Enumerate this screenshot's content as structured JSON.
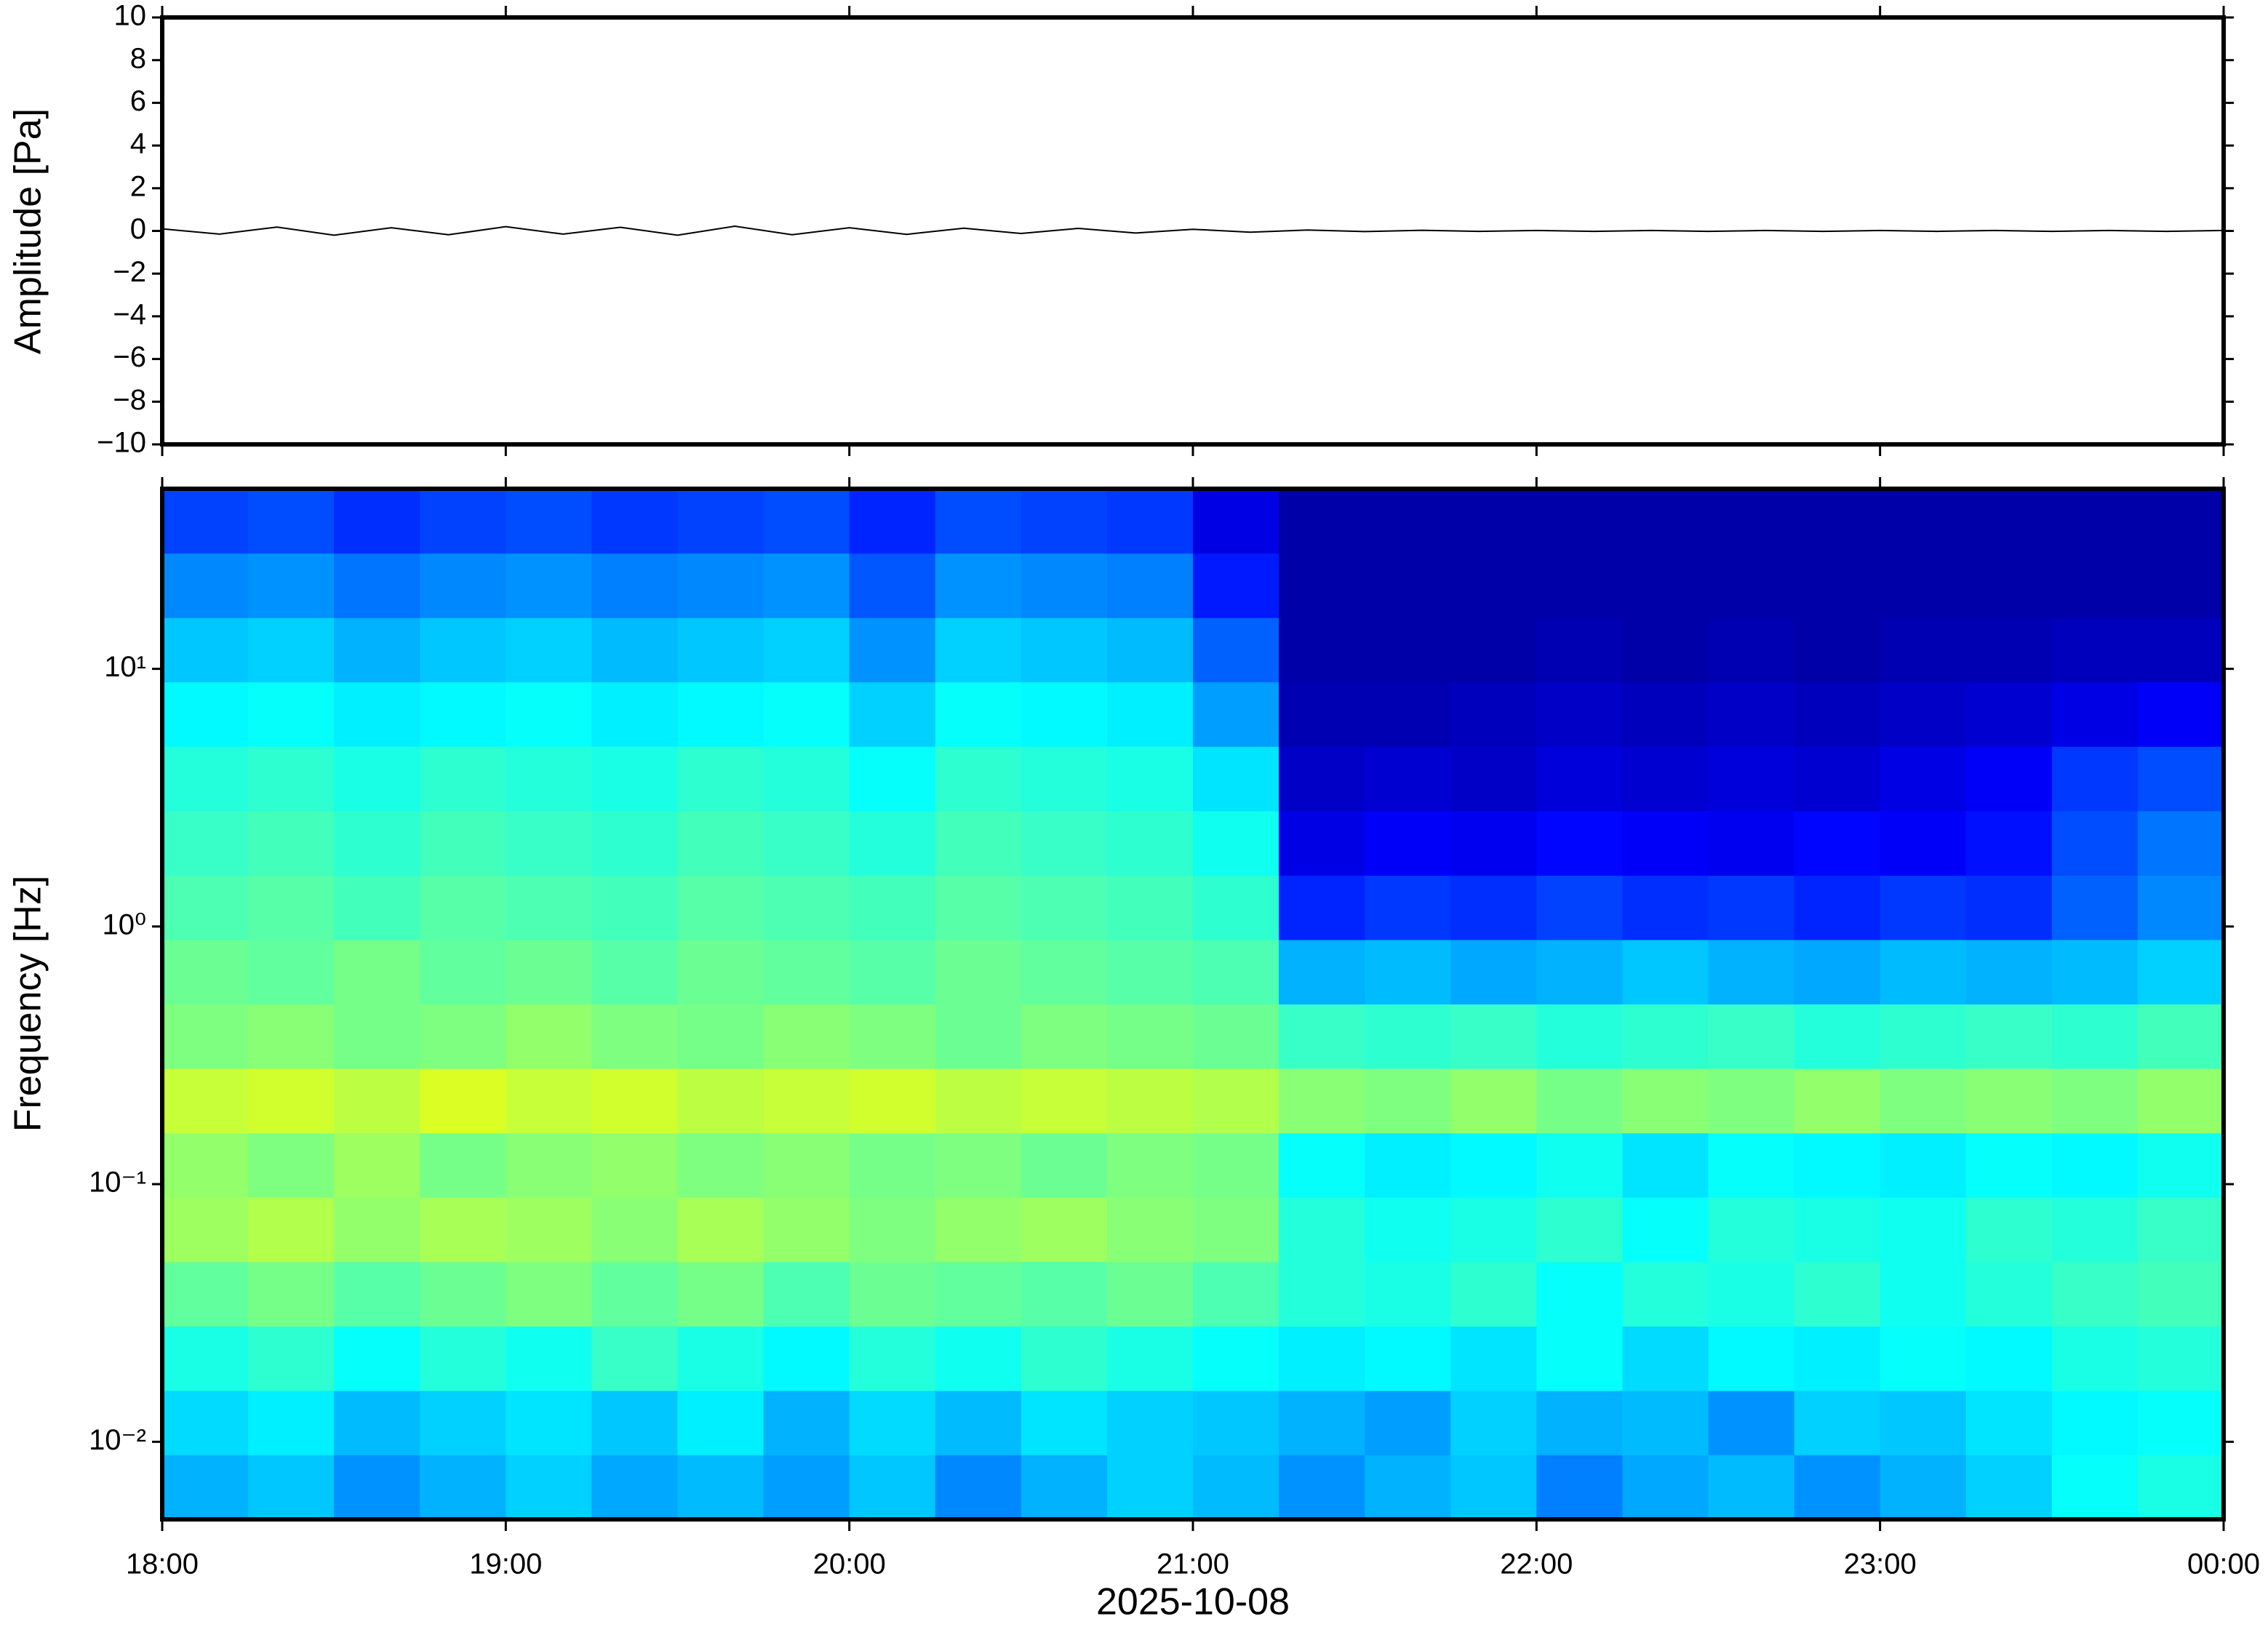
{
  "chart_data": [
    {
      "type": "line",
      "ylabel": "Amplitude [Pa]",
      "xlim": [
        18,
        24
      ],
      "ylim": [
        -10,
        10
      ],
      "yticks": [
        {
          "value": -10,
          "label": "−10"
        },
        {
          "value": -8,
          "label": "−8"
        },
        {
          "value": -6,
          "label": "−6"
        },
        {
          "value": -4,
          "label": "−4"
        },
        {
          "value": -2,
          "label": "−2"
        },
        0,
        2,
        4,
        6,
        8,
        10
      ],
      "grid": false,
      "series": [
        {
          "color": "#000000",
          "x": [
            18.0,
            18.1667,
            18.3333,
            18.5,
            18.6667,
            18.8333,
            19.0,
            19.1667,
            19.3333,
            19.5,
            19.6667,
            19.8333,
            20.0,
            20.1667,
            20.3333,
            20.5,
            20.6667,
            20.8333,
            21.0,
            21.1667,
            21.3333,
            21.5,
            21.6667,
            21.8333,
            22.0,
            22.1667,
            22.3333,
            22.5,
            22.6667,
            22.8333,
            23.0,
            23.1667,
            23.3333,
            23.5,
            23.6667,
            23.8333,
            24.0
          ],
          "values": [
            0.1,
            -0.15,
            0.18,
            -0.2,
            0.15,
            -0.18,
            0.2,
            -0.15,
            0.17,
            -0.2,
            0.22,
            -0.18,
            0.15,
            -0.16,
            0.13,
            -0.12,
            0.12,
            -0.1,
            0.08,
            -0.06,
            0.04,
            -0.03,
            0.03,
            -0.02,
            0.02,
            -0.02,
            0.02,
            -0.02,
            0.02,
            -0.02,
            0.02,
            -0.02,
            0.02,
            -0.02,
            0.02,
            -0.02,
            0.02
          ]
        }
      ]
    },
    {
      "type": "heatmap",
      "ylabel": "Frequency [Hz]",
      "xlabel": "2025-10-08",
      "log_y": true,
      "xlim": [
        18,
        24
      ],
      "ylim": [
        0.005,
        50
      ],
      "xticks": [
        {
          "value": 18,
          "label": "18:00"
        },
        {
          "value": 19,
          "label": "19:00"
        },
        {
          "value": 20,
          "label": "20:00"
        },
        {
          "value": 21,
          "label": "21:00"
        },
        {
          "value": 22,
          "label": "22:00"
        },
        {
          "value": 23,
          "label": "23:00"
        },
        {
          "value": 24,
          "label": "00:00"
        }
      ],
      "yticks": [
        {
          "value": 0.01,
          "label": "10⁻²"
        },
        {
          "value": 0.1,
          "label": "10⁻¹"
        },
        {
          "value": 1,
          "label": "10⁰"
        },
        {
          "value": 10,
          "label": "10¹"
        }
      ],
      "colorscale": [
        "#00007f",
        "#0000ff",
        "#007fff",
        "#00ffff",
        "#7fff7f",
        "#ffff00",
        "#ff7f00",
        "#ff0000",
        "#7f0000"
      ],
      "zlim": [
        0,
        1
      ],
      "xbins": [
        18,
        18.25,
        18.5,
        18.75,
        19,
        19.25,
        19.5,
        19.75,
        20,
        20.25,
        20.5,
        20.75,
        21,
        21.25,
        21.5,
        21.75,
        22,
        22.25,
        22.5,
        22.75,
        23,
        23.25,
        23.5,
        23.75,
        24
      ],
      "ybins": [
        0.005,
        0.0089,
        0.0158,
        0.0281,
        0.05,
        0.0889,
        0.158,
        0.281,
        0.5,
        0.889,
        1.58,
        2.81,
        5,
        8.89,
        15.8,
        28.1,
        50
      ],
      "z": [
        [
          0.3,
          0.32,
          0.27,
          0.3,
          0.33,
          0.29,
          0.31,
          0.28,
          0.32,
          0.26,
          0.3,
          0.33,
          0.31,
          0.27,
          0.3,
          0.32,
          0.25,
          0.29,
          0.31,
          0.27,
          0.3,
          0.33,
          0.38,
          0.4
        ],
        [
          0.34,
          0.36,
          0.31,
          0.33,
          0.35,
          0.32,
          0.36,
          0.3,
          0.34,
          0.31,
          0.35,
          0.33,
          0.32,
          0.3,
          0.28,
          0.33,
          0.3,
          0.31,
          0.27,
          0.33,
          0.32,
          0.35,
          0.37,
          0.38
        ],
        [
          0.4,
          0.42,
          0.38,
          0.41,
          0.39,
          0.43,
          0.4,
          0.37,
          0.41,
          0.39,
          0.42,
          0.4,
          0.38,
          0.36,
          0.37,
          0.35,
          0.38,
          0.34,
          0.37,
          0.36,
          0.38,
          0.37,
          0.4,
          0.41
        ],
        [
          0.47,
          0.49,
          0.46,
          0.48,
          0.5,
          0.47,
          0.49,
          0.45,
          0.48,
          0.47,
          0.46,
          0.48,
          0.45,
          0.41,
          0.4,
          0.42,
          0.38,
          0.41,
          0.4,
          0.42,
          0.39,
          0.41,
          0.43,
          0.44
        ],
        [
          0.53,
          0.55,
          0.52,
          0.54,
          0.53,
          0.51,
          0.54,
          0.52,
          0.5,
          0.52,
          0.53,
          0.51,
          0.5,
          0.41,
          0.39,
          0.4,
          0.42,
          0.38,
          0.41,
          0.4,
          0.39,
          0.42,
          0.41,
          0.43
        ],
        [
          0.52,
          0.5,
          0.53,
          0.49,
          0.51,
          0.52,
          0.5,
          0.51,
          0.49,
          0.5,
          0.48,
          0.5,
          0.49,
          0.38,
          0.36,
          0.37,
          0.39,
          0.35,
          0.38,
          0.37,
          0.36,
          0.38,
          0.37,
          0.39
        ],
        [
          0.57,
          0.58,
          0.56,
          0.59,
          0.57,
          0.58,
          0.56,
          0.57,
          0.58,
          0.56,
          0.57,
          0.56,
          0.55,
          0.51,
          0.5,
          0.52,
          0.49,
          0.51,
          0.5,
          0.52,
          0.5,
          0.51,
          0.5,
          0.52
        ],
        [
          0.5,
          0.51,
          0.49,
          0.5,
          0.52,
          0.5,
          0.49,
          0.51,
          0.5,
          0.48,
          0.5,
          0.49,
          0.48,
          0.43,
          0.42,
          0.43,
          0.41,
          0.42,
          0.43,
          0.41,
          0.42,
          0.43,
          0.42,
          0.44
        ],
        [
          0.48,
          0.47,
          0.49,
          0.47,
          0.48,
          0.46,
          0.48,
          0.47,
          0.46,
          0.48,
          0.47,
          0.46,
          0.45,
          0.3,
          0.31,
          0.29,
          0.3,
          0.32,
          0.3,
          0.29,
          0.31,
          0.3,
          0.31,
          0.33
        ],
        [
          0.45,
          0.46,
          0.44,
          0.46,
          0.45,
          0.44,
          0.46,
          0.45,
          0.44,
          0.46,
          0.45,
          0.44,
          0.42,
          0.16,
          0.18,
          0.17,
          0.19,
          0.17,
          0.18,
          0.16,
          0.18,
          0.17,
          0.22,
          0.26
        ],
        [
          0.43,
          0.44,
          0.42,
          0.44,
          0.43,
          0.42,
          0.44,
          0.43,
          0.41,
          0.44,
          0.43,
          0.42,
          0.39,
          0.1,
          0.12,
          0.11,
          0.13,
          0.12,
          0.11,
          0.13,
          0.12,
          0.14,
          0.2,
          0.24
        ],
        [
          0.41,
          0.42,
          0.4,
          0.42,
          0.41,
          0.4,
          0.42,
          0.41,
          0.38,
          0.42,
          0.41,
          0.4,
          0.35,
          0.07,
          0.08,
          0.07,
          0.09,
          0.08,
          0.09,
          0.08,
          0.1,
          0.12,
          0.18,
          0.2
        ],
        [
          0.37,
          0.38,
          0.36,
          0.37,
          0.38,
          0.36,
          0.37,
          0.38,
          0.33,
          0.38,
          0.37,
          0.36,
          0.28,
          0.05,
          0.05,
          0.06,
          0.07,
          0.06,
          0.07,
          0.06,
          0.07,
          0.08,
          0.1,
          0.12
        ],
        [
          0.32,
          0.33,
          0.3,
          0.32,
          0.33,
          0.31,
          0.32,
          0.33,
          0.27,
          0.33,
          0.32,
          0.31,
          0.22,
          0.04,
          0.04,
          0.04,
          0.05,
          0.04,
          0.05,
          0.04,
          0.05,
          0.05,
          0.06,
          0.06
        ],
        [
          0.26,
          0.27,
          0.24,
          0.26,
          0.27,
          0.25,
          0.26,
          0.27,
          0.21,
          0.27,
          0.26,
          0.25,
          0.15,
          0.04,
          0.04,
          0.04,
          0.04,
          0.04,
          0.04,
          0.04,
          0.04,
          0.04,
          0.04,
          0.04
        ],
        [
          0.19,
          0.2,
          0.17,
          0.19,
          0.2,
          0.18,
          0.19,
          0.2,
          0.16,
          0.2,
          0.19,
          0.18,
          0.1,
          0.04,
          0.04,
          0.04,
          0.04,
          0.04,
          0.04,
          0.04,
          0.04,
          0.04,
          0.04,
          0.04
        ]
      ]
    }
  ]
}
